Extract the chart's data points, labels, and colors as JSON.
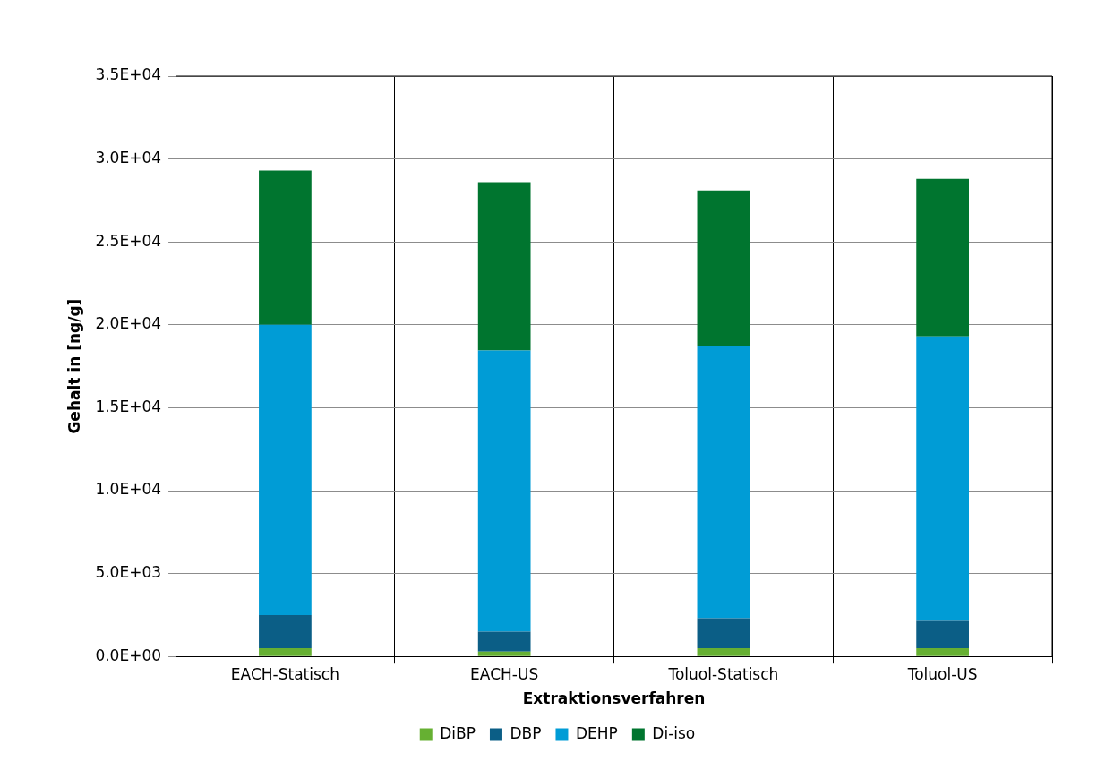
{
  "chart_data": {
    "type": "bar",
    "stacked": true,
    "xlabel": "Extraktionsverfahren",
    "ylabel": "Gehalt in [ng/g]",
    "categories": [
      "EACH-Statisch",
      "EACH-US",
      "Toluol-Statisch",
      "Toluol-US"
    ],
    "series": [
      {
        "name": "DiBP",
        "color": "#66b032",
        "values": [
          500,
          300,
          500,
          500
        ]
      },
      {
        "name": "DBP",
        "color": "#0b5e86",
        "values": [
          2000,
          1200,
          1800,
          1650
        ]
      },
      {
        "name": "DEHP",
        "color": "#009cd6",
        "values": [
          17500,
          16950,
          16450,
          17150
        ]
      },
      {
        "name": "Di-iso",
        "color": "#00752f",
        "values": [
          9300,
          10150,
          9350,
          9500
        ]
      }
    ],
    "ylim": [
      0,
      35000
    ],
    "yticks": [
      {
        "value": 0,
        "label": "0.0E+00"
      },
      {
        "value": 5000,
        "label": "5.0E+03"
      },
      {
        "value": 10000,
        "label": "1.0E+04"
      },
      {
        "value": 15000,
        "label": "1.5E+04"
      },
      {
        "value": 20000,
        "label": "2.0E+04"
      },
      {
        "value": 25000,
        "label": "2.5E+04"
      },
      {
        "value": 30000,
        "label": "3.0E+04"
      },
      {
        "value": 35000,
        "label": "3.5E+04"
      }
    ],
    "grid": true,
    "legend": "bottom"
  }
}
